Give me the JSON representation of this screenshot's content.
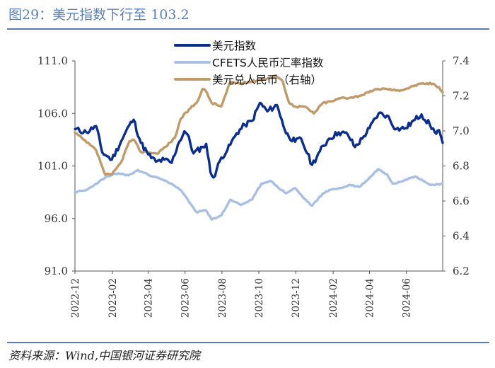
{
  "header": {
    "title": "图29：美元指数下行至 103.2"
  },
  "footer": {
    "source": "资料来源：Wind,中国银河证券研究院"
  },
  "colors": {
    "dxy": "#0b2e8c",
    "cfets": "#a8bfe3",
    "usdcny": "#c09a68",
    "axis": "#555555",
    "rule": "#5a79b6"
  },
  "chart_data": {
    "type": "line",
    "title": "图29：美元指数下行至 103.2",
    "x_tick_labels": [
      "2022-12",
      "2023-02",
      "2023-04",
      "2023-06",
      "2023-08",
      "2023-10",
      "2023-12",
      "2024-02",
      "2024-04",
      "2024-06"
    ],
    "x_range": [
      "2022-12-01",
      "2024-07-31"
    ],
    "y_left": {
      "min": 91.0,
      "max": 111.0,
      "ticks": [
        "91.0",
        "96.0",
        "101.0",
        "106.0",
        "111.0"
      ]
    },
    "y_right": {
      "min": 6.2,
      "max": 7.4,
      "ticks": [
        "6.2",
        "6.4",
        "6.6",
        "6.8",
        "7.0",
        "7.2",
        "7.4"
      ]
    },
    "legend_position": "top-center",
    "grid": false,
    "series": [
      {
        "name": "美元指数",
        "axis": "left",
        "points": [
          [
            "2022-12-01",
            104.5
          ],
          [
            "2022-12-20",
            104.2
          ],
          [
            "2023-01-05",
            104.8
          ],
          [
            "2023-01-15",
            102.3
          ],
          [
            "2023-01-31",
            101.6
          ],
          [
            "2023-02-15",
            103.3
          ],
          [
            "2023-03-01",
            104.9
          ],
          [
            "2023-03-08",
            105.4
          ],
          [
            "2023-03-20",
            103.2
          ],
          [
            "2023-04-01",
            102.1
          ],
          [
            "2023-04-14",
            101.4
          ],
          [
            "2023-04-28",
            101.6
          ],
          [
            "2023-05-10",
            101.3
          ],
          [
            "2023-05-20",
            103.0
          ],
          [
            "2023-05-31",
            104.3
          ],
          [
            "2023-06-05",
            104.0
          ],
          [
            "2023-06-15",
            102.2
          ],
          [
            "2023-06-30",
            102.8
          ],
          [
            "2023-07-06",
            103.1
          ],
          [
            "2023-07-13",
            100.4
          ],
          [
            "2023-07-18",
            99.9
          ],
          [
            "2023-07-31",
            101.8
          ],
          [
            "2023-08-10",
            102.5
          ],
          [
            "2023-08-25",
            104.1
          ],
          [
            "2023-09-08",
            104.9
          ],
          [
            "2023-09-20",
            105.3
          ],
          [
            "2023-10-03",
            107.0
          ],
          [
            "2023-10-15",
            106.2
          ],
          [
            "2023-10-31",
            106.8
          ],
          [
            "2023-11-08",
            105.4
          ],
          [
            "2023-11-15",
            104.1
          ],
          [
            "2023-11-30",
            103.3
          ],
          [
            "2023-12-10",
            103.6
          ],
          [
            "2023-12-20",
            102.2
          ],
          [
            "2023-12-28",
            101.1
          ],
          [
            "2024-01-10",
            102.4
          ],
          [
            "2024-01-25",
            103.6
          ],
          [
            "2024-02-10",
            104.2
          ],
          [
            "2024-02-25",
            104.0
          ],
          [
            "2024-03-08",
            102.8
          ],
          [
            "2024-03-20",
            103.6
          ],
          [
            "2024-04-01",
            104.6
          ],
          [
            "2024-04-16",
            106.0
          ],
          [
            "2024-04-30",
            105.8
          ],
          [
            "2024-05-15",
            104.5
          ],
          [
            "2024-05-31",
            104.6
          ],
          [
            "2024-06-15",
            105.4
          ],
          [
            "2024-06-26",
            105.9
          ],
          [
            "2024-07-10",
            104.9
          ],
          [
            "2024-07-18",
            104.2
          ],
          [
            "2024-07-25",
            104.4
          ],
          [
            "2024-07-31",
            103.2
          ]
        ]
      },
      {
        "name": "CFETS人民币汇率指数",
        "axis": "left",
        "points": [
          [
            "2022-12-01",
            98.5
          ],
          [
            "2022-12-20",
            98.7
          ],
          [
            "2023-01-05",
            99.3
          ],
          [
            "2023-01-20",
            99.9
          ],
          [
            "2023-02-10",
            100.3
          ],
          [
            "2023-02-28",
            100.1
          ],
          [
            "2023-03-15",
            100.6
          ],
          [
            "2023-03-31",
            100.2
          ],
          [
            "2023-04-20",
            99.8
          ],
          [
            "2023-05-10",
            99.3
          ],
          [
            "2023-05-25",
            98.7
          ],
          [
            "2023-06-10",
            97.4
          ],
          [
            "2023-06-20",
            96.6
          ],
          [
            "2023-07-05",
            96.8
          ],
          [
            "2023-07-15",
            95.9
          ],
          [
            "2023-07-31",
            96.3
          ],
          [
            "2023-08-15",
            97.8
          ],
          [
            "2023-09-01",
            97.3
          ],
          [
            "2023-09-20",
            97.8
          ],
          [
            "2023-10-05",
            99.3
          ],
          [
            "2023-10-20",
            99.6
          ],
          [
            "2023-11-01",
            99.0
          ],
          [
            "2023-11-15",
            98.4
          ],
          [
            "2023-11-30",
            98.9
          ],
          [
            "2023-12-15",
            97.9
          ],
          [
            "2023-12-28",
            97.2
          ],
          [
            "2024-01-15",
            98.4
          ],
          [
            "2024-01-31",
            98.8
          ],
          [
            "2024-02-15",
            98.9
          ],
          [
            "2024-02-29",
            99.2
          ],
          [
            "2024-03-15",
            99.0
          ],
          [
            "2024-03-31",
            99.8
          ],
          [
            "2024-04-15",
            100.7
          ],
          [
            "2024-04-30",
            100.2
          ],
          [
            "2024-05-10",
            99.3
          ],
          [
            "2024-05-31",
            99.7
          ],
          [
            "2024-06-15",
            100.0
          ],
          [
            "2024-06-26",
            99.7
          ],
          [
            "2024-07-10",
            99.2
          ],
          [
            "2024-07-31",
            99.3
          ]
        ]
      },
      {
        "name": "美元兑人民币（右轴）",
        "axis": "right",
        "points": [
          [
            "2022-12-01",
            6.99
          ],
          [
            "2022-12-15",
            6.95
          ],
          [
            "2023-01-05",
            6.89
          ],
          [
            "2023-01-20",
            6.75
          ],
          [
            "2023-01-31",
            6.75
          ],
          [
            "2023-02-15",
            6.82
          ],
          [
            "2023-03-01",
            6.94
          ],
          [
            "2023-03-08",
            6.95
          ],
          [
            "2023-03-20",
            6.88
          ],
          [
            "2023-03-31",
            6.88
          ],
          [
            "2023-04-15",
            6.87
          ],
          [
            "2023-04-30",
            6.91
          ],
          [
            "2023-05-15",
            6.96
          ],
          [
            "2023-05-25",
            7.07
          ],
          [
            "2023-06-10",
            7.13
          ],
          [
            "2023-06-20",
            7.16
          ],
          [
            "2023-06-30",
            7.24
          ],
          [
            "2023-07-05",
            7.23
          ],
          [
            "2023-07-15",
            7.16
          ],
          [
            "2023-07-31",
            7.14
          ],
          [
            "2023-08-15",
            7.28
          ],
          [
            "2023-08-31",
            7.27
          ],
          [
            "2023-09-15",
            7.28
          ],
          [
            "2023-09-30",
            7.29
          ],
          [
            "2023-10-15",
            7.3
          ],
          [
            "2023-10-31",
            7.31
          ],
          [
            "2023-11-10",
            7.28
          ],
          [
            "2023-11-20",
            7.16
          ],
          [
            "2023-11-30",
            7.14
          ],
          [
            "2023-12-15",
            7.14
          ],
          [
            "2023-12-31",
            7.1
          ],
          [
            "2024-01-15",
            7.16
          ],
          [
            "2024-01-31",
            7.17
          ],
          [
            "2024-02-15",
            7.19
          ],
          [
            "2024-02-29",
            7.19
          ],
          [
            "2024-03-15",
            7.2
          ],
          [
            "2024-03-31",
            7.22
          ],
          [
            "2024-04-15",
            7.24
          ],
          [
            "2024-04-30",
            7.24
          ],
          [
            "2024-05-15",
            7.23
          ],
          [
            "2024-05-31",
            7.24
          ],
          [
            "2024-06-15",
            7.26
          ],
          [
            "2024-06-30",
            7.27
          ],
          [
            "2024-07-15",
            7.27
          ],
          [
            "2024-07-25",
            7.25
          ],
          [
            "2024-07-31",
            7.22
          ]
        ]
      }
    ]
  }
}
